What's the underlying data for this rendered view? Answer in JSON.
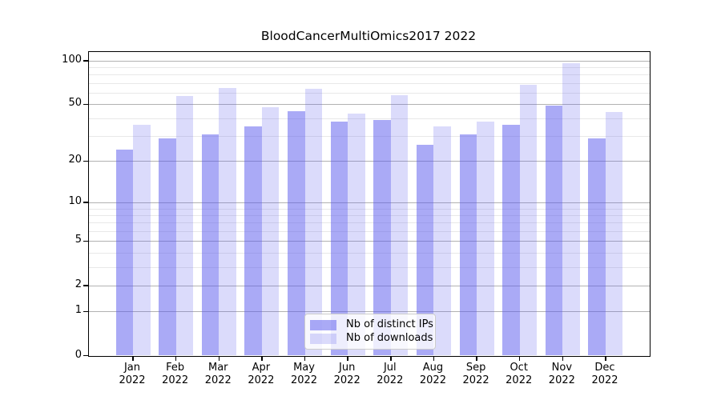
{
  "figure": {
    "background": "#ffffff"
  },
  "chart_data": {
    "type": "bar",
    "title": "BloodCancerMultiOmics2017 2022",
    "categories": [
      "Jan",
      "Feb",
      "Mar",
      "Apr",
      "May",
      "Jun",
      "Jul",
      "Aug",
      "Sep",
      "Oct",
      "Nov",
      "Dec"
    ],
    "year_label": "2022",
    "series": [
      {
        "name": "Nb of distinct IPs",
        "color": "rgba(85,85,238,0.5)",
        "values": [
          24,
          29,
          31,
          35,
          45,
          38,
          39,
          26,
          31,
          36,
          49,
          29
        ]
      },
      {
        "name": "Nb of downloads",
        "color": "rgba(85,85,238,0.21)",
        "values": [
          36,
          57,
          65,
          48,
          64,
          43,
          58,
          35,
          38,
          68,
          96,
          44
        ]
      }
    ],
    "yscale": "log1p",
    "yticks": [
      0,
      1,
      2,
      5,
      10,
      20,
      50,
      100
    ],
    "yticks_minor": [
      3,
      4,
      6,
      7,
      8,
      9,
      30,
      40,
      60,
      70,
      80,
      90
    ],
    "ylim": [
      0,
      112
    ],
    "xlabel": "",
    "ylabel": "",
    "grid": "horizontal",
    "legend_position": "lower-center"
  },
  "style": {
    "major_grid_color": "#b2b2b2",
    "minor_grid_color": "#e8e8e8",
    "axis_color": "#000000",
    "text_color": "#000000",
    "legend_border_color": "#cccccc",
    "legend_background": "rgba(255,255,255,0.8)"
  }
}
